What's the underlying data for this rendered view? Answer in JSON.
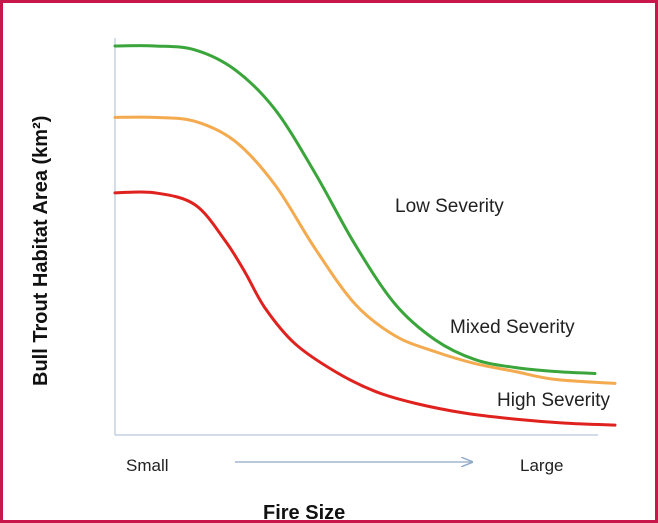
{
  "chart_data": {
    "type": "line",
    "title": "",
    "xlabel": "Fire Size",
    "ylabel": "Bull Trout Habitat Area (km²)",
    "x_tick_labels": [
      "Small",
      "Large"
    ],
    "xlim": [
      0,
      1
    ],
    "ylim": [
      0,
      1
    ],
    "grid": false,
    "legend": "direct-labels",
    "series": [
      {
        "name": "Low Severity",
        "color": "#3aa53a",
        "x": [
          0,
          0.08,
          0.16,
          0.24,
          0.32,
          0.4,
          0.48,
          0.56,
          0.64,
          0.72,
          0.8,
          0.88,
          0.96
        ],
        "y": [
          0.98,
          0.98,
          0.97,
          0.92,
          0.82,
          0.66,
          0.48,
          0.33,
          0.24,
          0.19,
          0.17,
          0.16,
          0.155
        ]
      },
      {
        "name": "Mixed Severity",
        "color": "#f4aa4f",
        "x": [
          0,
          0.08,
          0.16,
          0.24,
          0.32,
          0.4,
          0.48,
          0.56,
          0.64,
          0.72,
          0.8,
          0.88,
          1.0
        ],
        "y": [
          0.8,
          0.8,
          0.79,
          0.74,
          0.63,
          0.47,
          0.33,
          0.25,
          0.21,
          0.18,
          0.16,
          0.14,
          0.13
        ]
      },
      {
        "name": "High Severity",
        "color": "#e0221e",
        "x": [
          0,
          0.08,
          0.16,
          0.22,
          0.26,
          0.3,
          0.36,
          0.44,
          0.52,
          0.6,
          0.7,
          0.8,
          0.9,
          1.0
        ],
        "y": [
          0.61,
          0.61,
          0.58,
          0.49,
          0.41,
          0.32,
          0.23,
          0.16,
          0.11,
          0.08,
          0.055,
          0.04,
          0.03,
          0.025
        ]
      }
    ]
  }
}
